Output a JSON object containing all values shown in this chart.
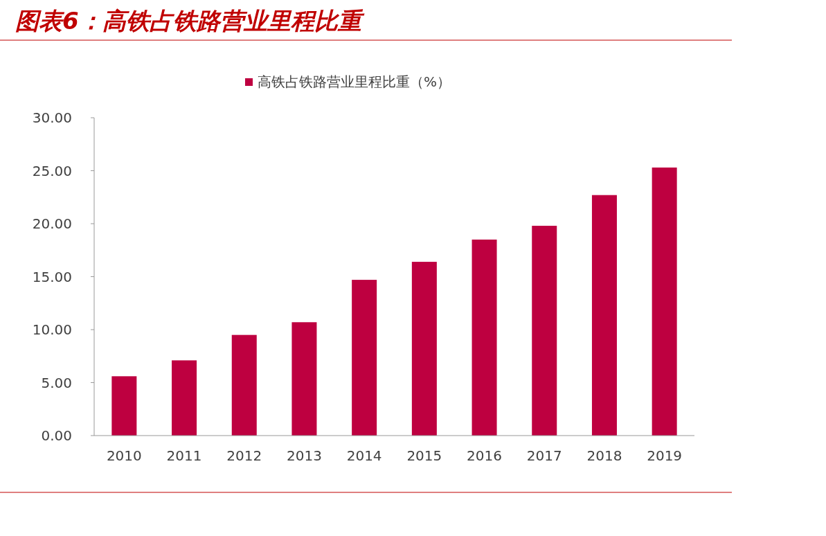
{
  "chart_data": {
    "type": "bar",
    "title": "图表6：高铁占铁路营业里程比重",
    "categories": [
      "2010",
      "2011",
      "2012",
      "2013",
      "2014",
      "2015",
      "2016",
      "2017",
      "2018",
      "2019"
    ],
    "series": [
      {
        "name": "高铁占铁路营业里程比重（%）",
        "color": "#be0040",
        "values": [
          5.6,
          7.1,
          9.5,
          10.7,
          14.7,
          16.4,
          18.5,
          19.8,
          22.7,
          25.3
        ]
      }
    ],
    "ylim": [
      0,
      30
    ],
    "yticks": [
      {
        "value": 0,
        "label": "0.00"
      },
      {
        "value": 5,
        "label": "5.00"
      },
      {
        "value": 10,
        "label": "10.00"
      },
      {
        "value": 15,
        "label": "15.00"
      },
      {
        "value": 20,
        "label": "20.00"
      },
      {
        "value": 25,
        "label": "25.00"
      },
      {
        "value": 30,
        "label": "30.00"
      }
    ],
    "grid": false,
    "legend": "top"
  }
}
